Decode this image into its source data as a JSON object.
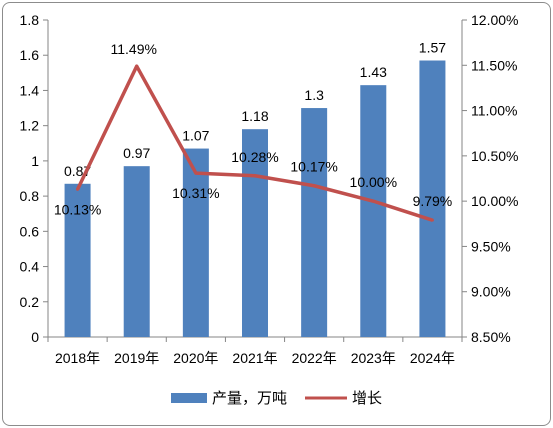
{
  "chart_data": {
    "type": "bar",
    "categories": [
      "2018年",
      "2019年",
      "2020年",
      "2021年",
      "2022年",
      "2023年",
      "2024年"
    ],
    "series": [
      {
        "name": "产量，万吨",
        "type": "bar",
        "axis": "left",
        "values": [
          0.87,
          0.97,
          1.07,
          1.18,
          1.3,
          1.43,
          1.57
        ],
        "labels": [
          "0.87",
          "0.97",
          "1.07",
          "1.18",
          "1.3",
          "1.43",
          "1.57"
        ],
        "color": "#4f81bd"
      },
      {
        "name": "增长",
        "type": "line",
        "axis": "right",
        "values": [
          10.13,
          11.49,
          10.31,
          10.28,
          10.17,
          10.0,
          9.79
        ],
        "labels": [
          "10.13%",
          "11.49%",
          "10.31%",
          "10.28%",
          "10.17%",
          "10.00%",
          "9.79%"
        ],
        "color": "#c0504d"
      }
    ],
    "y_left": {
      "ylim": [
        0,
        1.8
      ],
      "ticks": [
        0,
        0.2,
        0.4,
        0.6,
        0.8,
        1,
        1.2,
        1.4,
        1.6,
        1.8
      ],
      "tick_labels": [
        "0",
        "0.2",
        "0.4",
        "0.6",
        "0.8",
        "1",
        "1.2",
        "1.4",
        "1.6",
        "1.8"
      ]
    },
    "y_right": {
      "ylim": [
        8.5,
        12.0
      ],
      "ticks": [
        8.5,
        9.0,
        9.5,
        10.0,
        10.5,
        11.0,
        11.5,
        12.0
      ],
      "tick_labels": [
        "8.50%",
        "9.00%",
        "9.50%",
        "10.00%",
        "10.50%",
        "11.00%",
        "11.50%",
        "12.00%"
      ]
    },
    "grid": false,
    "legend": "bottom"
  }
}
